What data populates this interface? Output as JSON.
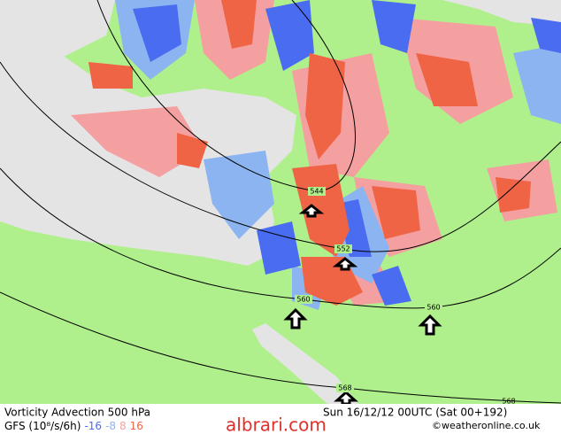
{
  "title": "Vorticity Advection 500 hPa",
  "model": "GFS (10⁸/s/6h)",
  "legend": [
    {
      "label": "-16",
      "color": "#4a6cf0"
    },
    {
      "label": "-8",
      "color": "#8cb4f0"
    },
    {
      "label": "8",
      "color": "#f4a0a0"
    },
    {
      "label": "16",
      "color": "#f06446"
    }
  ],
  "valid_time": "Sun 16/12/12 00UTC  (Sat 00+192)",
  "watermark": "albrari.com",
  "credit": "©weatheronline.co.uk",
  "contour_labels": [
    "544",
    "552",
    "560",
    "560",
    "568",
    "568"
  ]
}
